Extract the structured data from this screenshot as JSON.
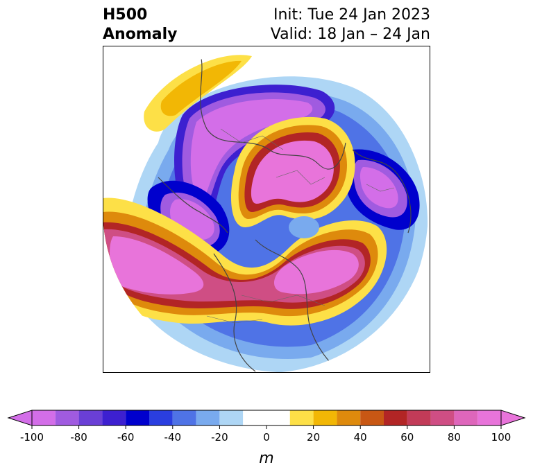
{
  "title": {
    "variable": "H500",
    "field": "Anomaly",
    "init": "Init: Tue 24 Jan 2023",
    "valid": "Valid: 18 Jan – 24 Jan"
  },
  "colorbar": {
    "unit_label": "m",
    "ticks": [
      "-100",
      "-80",
      "-60",
      "-40",
      "-20",
      "0",
      "20",
      "40",
      "60",
      "80",
      "100"
    ],
    "levels": [
      -100,
      -90,
      -80,
      -70,
      -60,
      -50,
      -40,
      -30,
      -20,
      -10,
      10,
      20,
      30,
      40,
      50,
      60,
      70,
      80,
      90,
      100
    ],
    "colors": [
      "#d36ee8",
      "#a05be0",
      "#6a3fd6",
      "#3d20d0",
      "#0000cd",
      "#2a3ee0",
      "#4f73e6",
      "#79aaee",
      "#aed6f5",
      "#ffffff",
      "#fde047",
      "#f2b705",
      "#de8a0c",
      "#c85714",
      "#b22525",
      "#c23b58",
      "#cf4e84",
      "#de66bb",
      "#e874da"
    ],
    "extend_low_color": "#d36ee8",
    "extend_high_color": "#e874da"
  },
  "map": {
    "projection": "north-polar-stereographic",
    "anomaly_centers": [
      {
        "label": "",
        "sign": "positive",
        "region": "arctic",
        "value": 100
      },
      {
        "label": "",
        "sign": "positive",
        "region": "north-atlantic",
        "value": 100
      },
      {
        "label": "",
        "sign": "positive",
        "region": "north-pacific",
        "value": 100
      },
      {
        "label": "",
        "sign": "negative",
        "region": "siberia",
        "value": -100
      },
      {
        "label": "",
        "sign": "negative",
        "region": "scandinavia-russia",
        "value": -100
      },
      {
        "label": "",
        "sign": "negative",
        "region": "east-asia",
        "value": -100
      },
      {
        "label": "",
        "sign": "negative",
        "region": "western-north-america",
        "value": -40
      }
    ]
  }
}
